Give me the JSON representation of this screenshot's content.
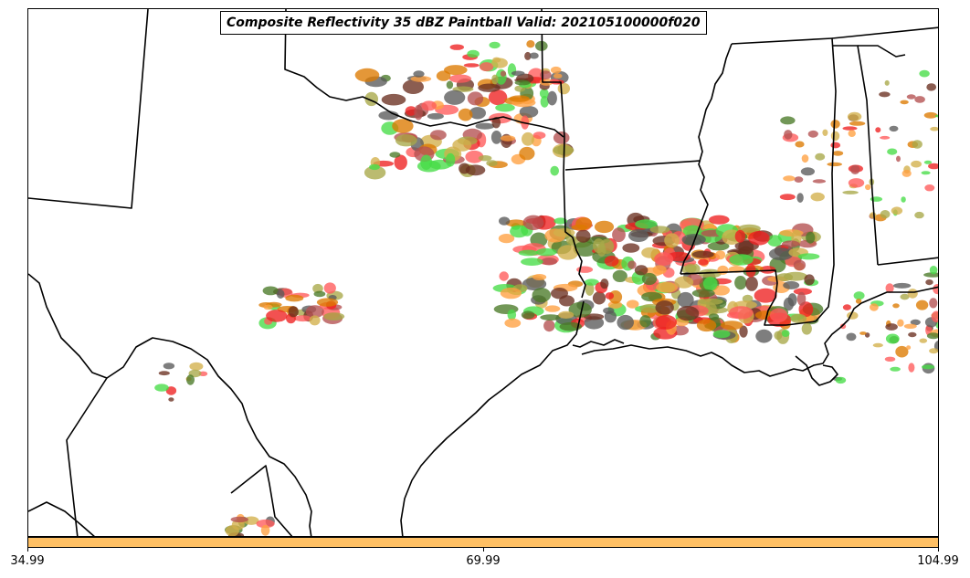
{
  "title": "Composite Reflectivity 35 dBZ Paintball Valid: 202105100000f020",
  "colorbar": {
    "color": "#ffc064",
    "tick_labels": [
      "34.99",
      "69.99",
      "104.99"
    ]
  },
  "map": {
    "background": "#ffffff",
    "boundary_color": "#000000",
    "member_colors": [
      "#ff5a5a",
      "#ffa040",
      "#a8a848",
      "#5a5a5a",
      "#46dc46",
      "#b45050",
      "#dc7a00",
      "#ee2020",
      "#4a7a28",
      "#6a3020",
      "#d2b04a"
    ]
  }
}
